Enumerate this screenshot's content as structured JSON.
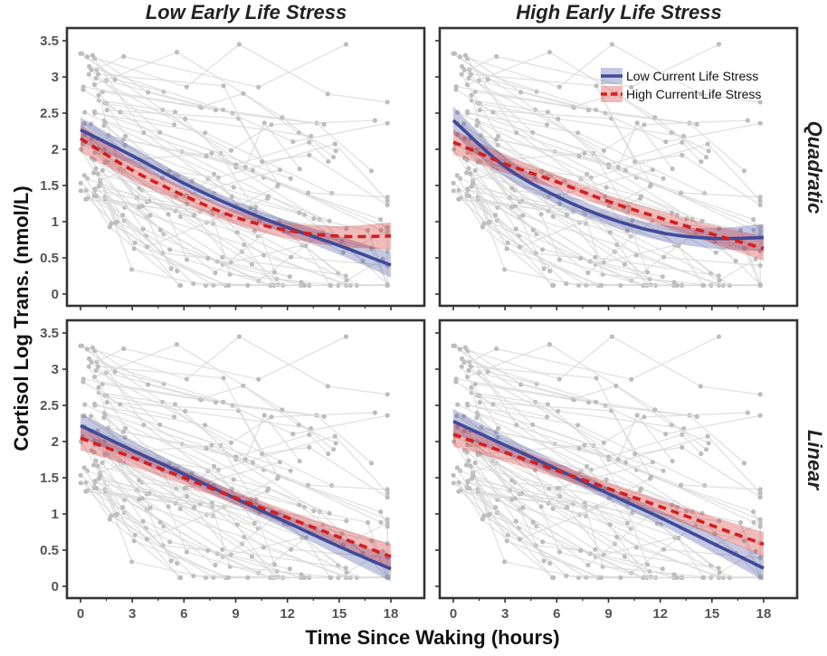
{
  "chart_data": {
    "type": "line",
    "facet_columns": [
      "Low Early Life Stress",
      "High Early Life Stress"
    ],
    "facet_rows": [
      "Quadratic",
      "Linear"
    ],
    "xlabel": "Time Since Waking (hours)",
    "ylabel": "Cortisol Log Trans. (nmol/L)",
    "xlim": [
      0,
      18
    ],
    "ylim": [
      0,
      3.5
    ],
    "x_ticks": [
      0,
      3,
      6,
      9,
      12,
      15,
      18
    ],
    "y_ticks": [
      0,
      0.5,
      1,
      1.5,
      2,
      2.5,
      3,
      3.5
    ],
    "legend": {
      "position": "top-right",
      "entries": [
        {
          "label": "Low Current Life Stress",
          "color": "#3f4a9a",
          "dash": "solid"
        },
        {
          "label": "High Current Life Stress",
          "color": "#d21f1f",
          "dash": "dashed"
        }
      ]
    },
    "x": [
      0,
      3,
      6,
      9,
      12,
      15,
      18
    ],
    "panels": [
      {
        "row": "Quadratic",
        "column": "Low Early Life Stress",
        "series": [
          {
            "name": "Low Current Life Stress",
            "values": [
              2.27,
              1.91,
              1.53,
              1.2,
              0.92,
              0.67,
              0.4
            ],
            "band": 0.09
          },
          {
            "name": "High Current Life Stress",
            "values": [
              2.15,
              1.71,
              1.36,
              1.06,
              0.88,
              0.8,
              0.8
            ],
            "band": 0.1
          }
        ]
      },
      {
        "row": "Quadratic",
        "column": "High Early Life Stress",
        "series": [
          {
            "name": "Low Current Life Stress",
            "values": [
              2.4,
              1.76,
              1.35,
              1.05,
              0.85,
              0.77,
              0.78
            ],
            "band": 0.1
          },
          {
            "name": "High Current Life Stress",
            "values": [
              2.1,
              1.8,
              1.55,
              1.28,
              1.05,
              0.83,
              0.63
            ],
            "band": 0.09
          }
        ]
      },
      {
        "row": "Linear",
        "column": "Low Early Life Stress",
        "series": [
          {
            "name": "Low Current Life Stress",
            "values": [
              2.22,
              1.88,
              1.55,
              1.21,
              0.88,
              0.55,
              0.24
            ],
            "band": 0.09
          },
          {
            "name": "High Current Life Stress",
            "values": [
              2.05,
              1.78,
              1.5,
              1.22,
              0.95,
              0.68,
              0.41
            ],
            "band": 0.09
          }
        ]
      },
      {
        "row": "Linear",
        "column": "High Early Life Stress",
        "series": [
          {
            "name": "Low Current Life Stress",
            "values": [
              2.28,
              1.95,
              1.62,
              1.28,
              0.95,
              0.6,
              0.25
            ],
            "band": 0.09
          },
          {
            "name": "High Current Life Stress",
            "values": [
              2.1,
              1.85,
              1.6,
              1.35,
              1.1,
              0.84,
              0.58
            ],
            "band": 0.09
          }
        ]
      }
    ],
    "background_data_color": "#bdbdbd"
  }
}
